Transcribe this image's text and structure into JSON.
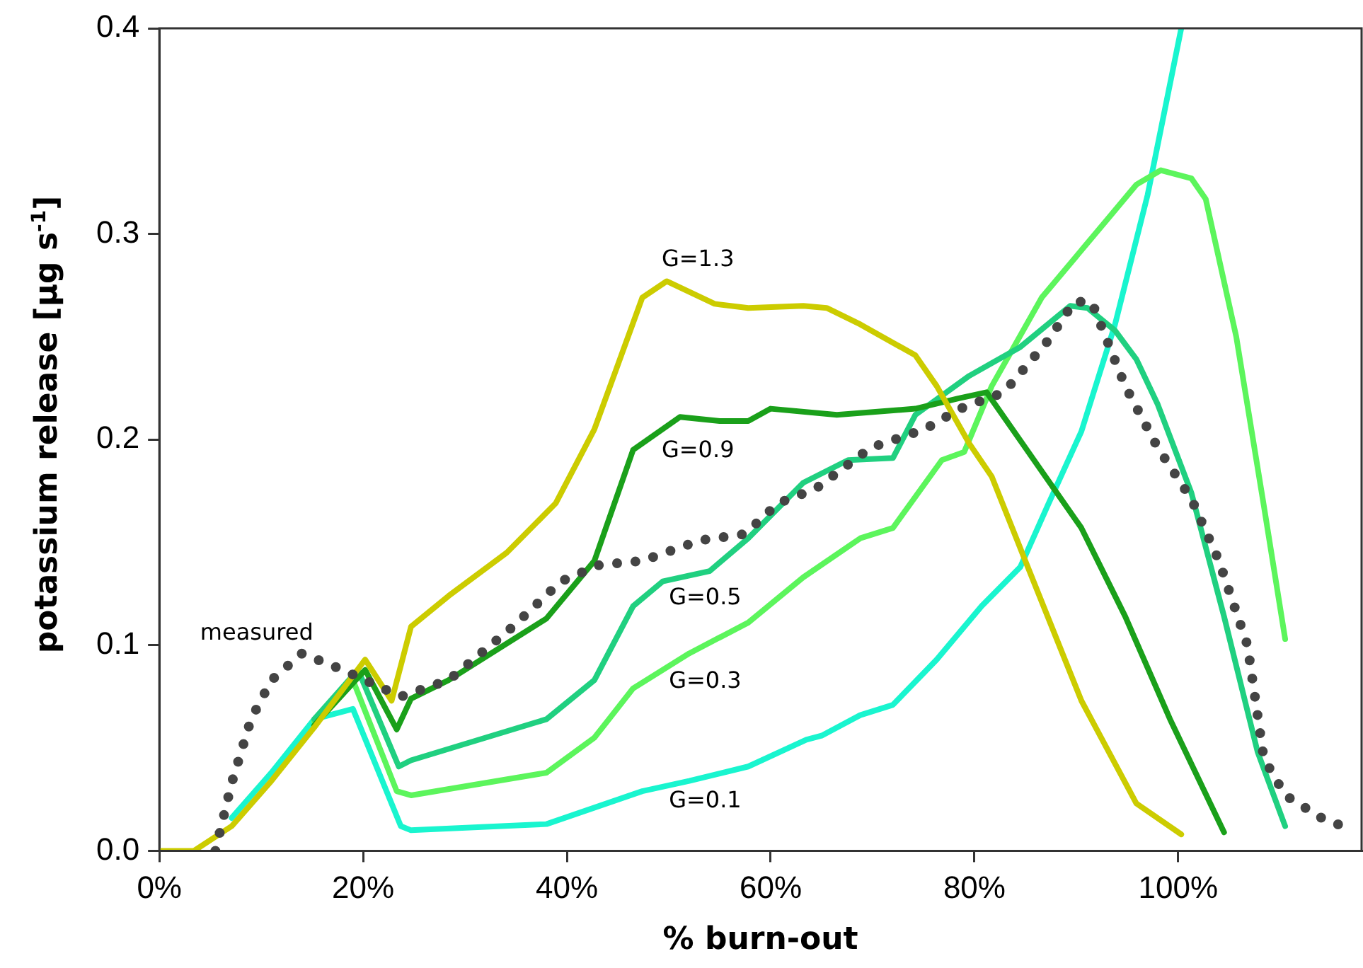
{
  "chart_data": {
    "type": "line",
    "xlabel": "% burn-out",
    "ylabel": "potassium release [µg s$^{-1}$]",
    "xlim": [
      0,
      118
    ],
    "xticks": [
      {
        "value": 0,
        "label": "0%"
      },
      {
        "value": 20,
        "label": "20%"
      },
      {
        "value": 40,
        "label": "40%"
      },
      {
        "value": 60,
        "label": "60%"
      },
      {
        "value": 80,
        "label": "80%"
      },
      {
        "value": 100,
        "label": "100%"
      }
    ],
    "ylim": [
      0,
      0.4
    ],
    "yticks": [
      {
        "value": 0,
        "label": "0.0"
      },
      0.1,
      0.2,
      0.3,
      0.4
    ],
    "grid": false,
    "legend": false,
    "marker": "none",
    "series": [
      {
        "name": "G=0.1",
        "color": "#19f5cf",
        "line_style": "solid",
        "x": [
          7.1,
          11,
          15.2,
          19,
          23.7,
          24.7,
          38,
          47.4,
          52,
          57.8,
          63.5,
          65,
          68.8,
          72,
          76.3,
          80.7,
          84.5,
          87.2,
          90.5,
          93.8,
          97,
          100.3
        ],
        "values": [
          0.016,
          0.038,
          0.064,
          0.069,
          0.012,
          0.01,
          0.013,
          0.029,
          0.034,
          0.041,
          0.054,
          0.056,
          0.066,
          0.071,
          0.093,
          0.119,
          0.138,
          0.168,
          0.204,
          0.256,
          0.319,
          0.4
        ]
      },
      {
        "name": "G=0.3",
        "color": "#5cf55c",
        "line_style": "solid",
        "x": [
          15.2,
          19,
          23.3,
          24.7,
          38,
          42.7,
          46.5,
          52,
          57.8,
          63.2,
          68.8,
          72,
          76.8,
          79,
          81.7,
          86.6,
          93.2,
          95.9,
          98.3,
          101.3,
          102.7,
          105.7,
          108.4,
          110.5
        ],
        "values": [
          0.063,
          0.083,
          0.029,
          0.027,
          0.038,
          0.055,
          0.079,
          0.096,
          0.111,
          0.133,
          0.152,
          0.157,
          0.19,
          0.194,
          0.226,
          0.269,
          0.308,
          0.324,
          0.331,
          0.327,
          0.317,
          0.25,
          0.168,
          0.103
        ]
      },
      {
        "name": "G=0.5",
        "color": "#20d080",
        "line_style": "solid",
        "x": [
          15.2,
          19.5,
          23.5,
          24.7,
          38,
          42.7,
          46.5,
          49.4,
          54,
          57.8,
          63.2,
          67.6,
          72,
          74.2,
          79.5,
          84.5,
          89.4,
          91.1,
          93.8,
          95.9,
          98,
          101.3,
          104.5,
          107.8,
          110.5
        ],
        "values": [
          0.064,
          0.088,
          0.041,
          0.044,
          0.064,
          0.083,
          0.119,
          0.131,
          0.136,
          0.152,
          0.179,
          0.19,
          0.191,
          0.212,
          0.231,
          0.245,
          0.265,
          0.264,
          0.253,
          0.239,
          0.217,
          0.174,
          0.114,
          0.048,
          0.012
        ]
      },
      {
        "name": "G=0.9",
        "color": "#1aa01a",
        "line_style": "solid",
        "x": [
          15.2,
          20.2,
          23.3,
          24.7,
          28.4,
          38,
          42.7,
          46.5,
          51.1,
          55,
          57.8,
          60,
          66.5,
          74.2,
          78.4,
          81.2,
          85,
          90.5,
          94.8,
          99.2,
          104.5
        ],
        "values": [
          0.061,
          0.088,
          0.059,
          0.074,
          0.083,
          0.113,
          0.141,
          0.195,
          0.211,
          0.209,
          0.209,
          0.215,
          0.212,
          0.215,
          0.22,
          0.223,
          0.196,
          0.157,
          0.114,
          0.064,
          0.009
        ]
      },
      {
        "name": "G=1.3",
        "color": "#cccc00",
        "line_style": "solid",
        "x": [
          0,
          3.4,
          7.1,
          11,
          15.2,
          20.2,
          22.8,
          24.7,
          28.4,
          34.1,
          38.9,
          42.7,
          47.4,
          49.8,
          54.5,
          57.8,
          63.2,
          65.5,
          68.8,
          74.2,
          76.3,
          79.5,
          81.7,
          85,
          90.5,
          95.9,
          100.3
        ],
        "values": [
          0,
          0,
          0.012,
          0.034,
          0.06,
          0.093,
          0.073,
          0.109,
          0.124,
          0.145,
          0.169,
          0.205,
          0.269,
          0.277,
          0.266,
          0.264,
          0.265,
          0.264,
          0.256,
          0.241,
          0.226,
          0.198,
          0.182,
          0.141,
          0.073,
          0.023,
          0.008
        ]
      },
      {
        "name": "measured",
        "color": "#444444",
        "line_style": "dotted",
        "x": [
          5.5,
          7.1,
          9,
          11,
          14,
          18,
          23.7,
          28.4,
          34.7,
          39.4,
          43.2,
          47.4,
          53.1,
          57.4,
          59,
          60.7,
          64.4,
          69.8,
          75.1,
          78.6,
          82.9,
          87.2,
          89.8,
          91.5,
          94.8,
          98,
          101.3,
          104,
          106.8,
          108.4,
          110.5,
          114.4,
          116.2
        ],
        "values": [
          0,
          0.033,
          0.064,
          0.083,
          0.096,
          0.088,
          0.075,
          0.083,
          0.109,
          0.131,
          0.139,
          0.141,
          0.151,
          0.154,
          0.161,
          0.169,
          0.176,
          0.196,
          0.205,
          0.215,
          0.223,
          0.248,
          0.267,
          0.267,
          0.226,
          0.196,
          0.171,
          0.141,
          0.1,
          0.045,
          0.027,
          0.015,
          0.012
        ]
      }
    ]
  }
}
